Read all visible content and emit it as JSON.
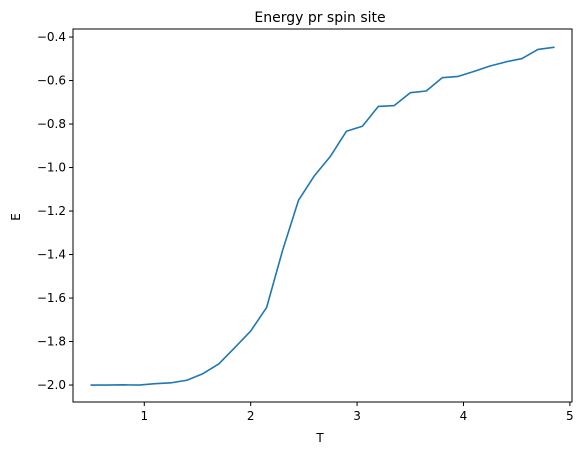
{
  "chart_data": {
    "type": "line",
    "title": "Energy pr spin site",
    "xlabel": "T",
    "ylabel": "E",
    "xlim": [
      0.33,
      5.02
    ],
    "ylim": [
      -2.078,
      -0.363
    ],
    "xticks": [
      {
        "value": 1,
        "label": "1"
      },
      {
        "value": 2,
        "label": "2"
      },
      {
        "value": 3,
        "label": "3"
      },
      {
        "value": 4,
        "label": "4"
      },
      {
        "value": 5,
        "label": "5"
      }
    ],
    "yticks": [
      {
        "value": -2.0,
        "label": "−2.0"
      },
      {
        "value": -1.8,
        "label": "−1.8"
      },
      {
        "value": -1.6,
        "label": "−1.6"
      },
      {
        "value": -1.4,
        "label": "−1.4"
      },
      {
        "value": -1.2,
        "label": "−1.2"
      },
      {
        "value": -1.0,
        "label": "−1.0"
      },
      {
        "value": -0.8,
        "label": "−0.8"
      },
      {
        "value": -0.6,
        "label": "−0.6"
      },
      {
        "value": -0.4,
        "label": "−0.4"
      }
    ],
    "grid": false,
    "color": "#1f77b4",
    "series": [
      {
        "x": [
          0.5,
          0.65,
          0.8,
          0.95,
          1.1,
          1.25,
          1.4,
          1.55,
          1.7,
          1.85,
          2.0,
          2.15,
          2.3,
          2.45,
          2.6,
          2.75,
          2.9,
          3.05,
          3.2,
          3.35,
          3.5,
          3.65,
          3.8,
          3.95,
          4.1,
          4.25,
          4.4,
          4.55,
          4.7,
          4.85
        ],
        "y": [
          -2.0,
          -2.0,
          -1.999,
          -2.0,
          -1.994,
          -1.99,
          -1.978,
          -1.948,
          -1.903,
          -1.828,
          -1.752,
          -1.643,
          -1.381,
          -1.15,
          -1.037,
          -0.948,
          -0.833,
          -0.81,
          -0.719,
          -0.715,
          -0.656,
          -0.648,
          -0.587,
          -0.581,
          -0.558,
          -0.533,
          -0.514,
          -0.499,
          -0.457,
          -0.447
        ]
      }
    ]
  }
}
